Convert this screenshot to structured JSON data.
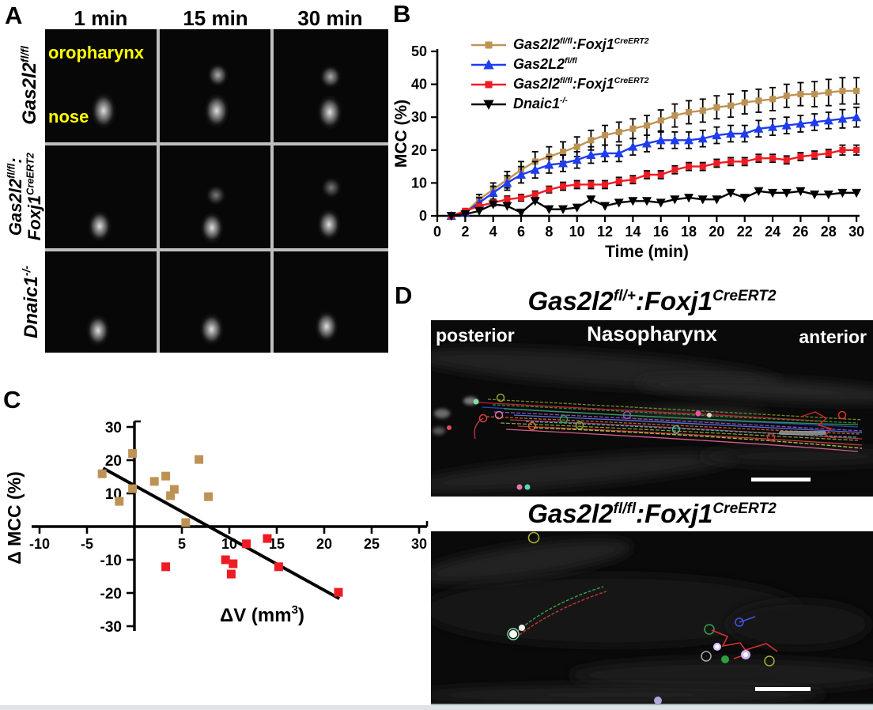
{
  "panelA": {
    "letter": "A",
    "col_headers": [
      "1 min",
      "15 min",
      "30 min"
    ],
    "row_labels": [
      {
        "line1": [
          [
            "Gas2l2",
            ""
          ],
          [
            "fl/fl",
            "sup"
          ]
        ]
      },
      {
        "line1": [
          [
            "Gas2l2",
            ""
          ],
          [
            "fl/fl",
            "sup"
          ],
          [
            ":",
            ""
          ]
        ],
        "line2": [
          [
            "Foxj1",
            ""
          ],
          [
            "CreERT2",
            "sup"
          ]
        ]
      },
      {
        "line1": [
          [
            "Dnaic1",
            ""
          ],
          [
            "-/-",
            "sup"
          ]
        ]
      }
    ],
    "overlay_labels": {
      "top": "oropharynx",
      "bottom": "nose"
    },
    "overlay_color": "#ffff00"
  },
  "panelB": {
    "letter": "B"
  },
  "panelC": {
    "letter": "C"
  },
  "panelD": {
    "letter": "D",
    "title_top": [
      [
        "Gas2l2",
        ""
      ],
      [
        "fl/+",
        "sup"
      ],
      [
        ":Foxj1",
        ""
      ],
      [
        "CreERT2",
        "sup"
      ]
    ],
    "title_bottom": [
      [
        "Gas2l2",
        ""
      ],
      [
        "fl/fl",
        "sup"
      ],
      [
        ":Foxj1",
        ""
      ],
      [
        "CreERT2",
        "sup"
      ]
    ],
    "image_top_labels": {
      "left": "posterior",
      "center": "Nasopharynx",
      "right": "anterior"
    }
  },
  "chart_data": [
    {
      "id": "mcc-time-course",
      "type": "line",
      "xlabel": "Time (min)",
      "ylabel": "MCC (%)",
      "xlim": [
        0,
        30
      ],
      "ylim": [
        0,
        50
      ],
      "xticks": [
        0,
        2,
        4,
        6,
        8,
        10,
        12,
        14,
        16,
        18,
        20,
        22,
        24,
        26,
        28,
        30
      ],
      "yticks": [
        0,
        10,
        20,
        30,
        40,
        50
      ],
      "grid": false,
      "legend_position": "top-left",
      "x": [
        1,
        2,
        3,
        4,
        5,
        6,
        7,
        8,
        9,
        10,
        11,
        12,
        13,
        14,
        15,
        16,
        17,
        18,
        19,
        20,
        21,
        22,
        23,
        24,
        25,
        26,
        27,
        28,
        29,
        30
      ],
      "series": [
        {
          "name_rich": [
            [
              "Gas2l2",
              ""
            ],
            [
              "fl/fl",
              "sup"
            ],
            [
              ":Foxj1",
              ""
            ],
            [
              "CreERT2",
              "sup"
            ]
          ],
          "color": "#bd9355",
          "marker": "square",
          "values": [
            0,
            1,
            5,
            8,
            11,
            14,
            16.5,
            18,
            19.5,
            21,
            23,
            24.5,
            25.5,
            26.5,
            27.5,
            29,
            30.5,
            31.5,
            32,
            33,
            33.5,
            34.5,
            35,
            35.5,
            36.5,
            37,
            37,
            37.5,
            38,
            38
          ],
          "errors": [
            0.3,
            0.8,
            1.5,
            2,
            2.5,
            2.5,
            3,
            3,
            3,
            3,
            3,
            3,
            3,
            3,
            3,
            3.2,
            3.5,
            3.5,
            3.5,
            3.5,
            3.5,
            3.5,
            3.5,
            3.5,
            3.5,
            3.5,
            3.8,
            4,
            4,
            4
          ]
        },
        {
          "name_rich": [
            [
              "Gas2L2",
              ""
            ],
            [
              "fl/fl",
              "sup"
            ]
          ],
          "color": "#1e3cf0",
          "marker": "triangle-up",
          "values": [
            0,
            1,
            4,
            7,
            10,
            12.5,
            14,
            15.5,
            16,
            17,
            18.5,
            19,
            19,
            21,
            22,
            23,
            23,
            23,
            23.5,
            24.5,
            25,
            25,
            26.5,
            27,
            27.5,
            28,
            28.5,
            29,
            29.5,
            30
          ],
          "errors": [
            0.3,
            0.8,
            1.5,
            2,
            2.2,
            2.5,
            2.5,
            2.5,
            2.5,
            2.5,
            2.5,
            2.5,
            2.5,
            2.5,
            2.5,
            2.5,
            2.5,
            2.5,
            2.5,
            2.5,
            2.5,
            2.5,
            2.5,
            2.5,
            2.5,
            2.5,
            2.5,
            2.5,
            2.8,
            3
          ]
        },
        {
          "name_rich": [
            [
              "Gas2l2",
              ""
            ],
            [
              "fl/fl",
              "sup"
            ],
            [
              ":Foxj1",
              ""
            ],
            [
              "CreERT2",
              "sup"
            ]
          ],
          "color": "#ed1c24",
          "marker": "square",
          "values": [
            0,
            1.5,
            3,
            4,
            5,
            5.5,
            6.5,
            8,
            9,
            9.5,
            9.5,
            9.5,
            10.5,
            11,
            12.5,
            12.5,
            14,
            15,
            15,
            16,
            16.5,
            16.5,
            17.5,
            17.5,
            17,
            18,
            18.5,
            19,
            20,
            20
          ],
          "errors": [
            0.2,
            0.5,
            0.8,
            1,
            1,
            1,
            1,
            1,
            1.2,
            1.2,
            1.2,
            1.2,
            1.2,
            1.2,
            1.2,
            1.2,
            1.2,
            1.2,
            1.2,
            1.2,
            1.2,
            1.2,
            1.2,
            1.2,
            1.2,
            1.2,
            1.2,
            1.2,
            1.5,
            1.5
          ]
        },
        {
          "name_rich": [
            [
              "Dnaic1",
              ""
            ],
            [
              "-/-",
              "sup"
            ]
          ],
          "color": "#000000",
          "marker": "triangle-down",
          "values": [
            0,
            0.5,
            1.5,
            3.5,
            3,
            1,
            4.5,
            2,
            2,
            2.5,
            5,
            3,
            4,
            4.5,
            4.5,
            4,
            5,
            5.5,
            5,
            5,
            7,
            5.5,
            7.5,
            7,
            7,
            7.5,
            6.5,
            6.5,
            7,
            7
          ],
          "errors": [
            0,
            0,
            0,
            0,
            0,
            0,
            0,
            0,
            0,
            0,
            0,
            0,
            0,
            0,
            0,
            0,
            0,
            0,
            0,
            0,
            0,
            0,
            0,
            0,
            0,
            0,
            0,
            0,
            0,
            0
          ]
        }
      ]
    },
    {
      "id": "delta-mcc-vs-delta-v",
      "type": "scatter",
      "xlabel_rich": [
        [
          "ΔV (mm",
          ""
        ],
        [
          "3",
          "sup"
        ],
        [
          ")",
          ""
        ]
      ],
      "ylabel": "Δ MCC (%)",
      "xlim": [
        -10,
        30
      ],
      "ylim": [
        -30,
        30
      ],
      "xticks": [
        -10,
        -5,
        5,
        10,
        15,
        20,
        25,
        30
      ],
      "yticks": [
        30,
        20,
        10,
        -10,
        -20,
        -30
      ],
      "grid": false,
      "series": [
        {
          "color": "#bd9355",
          "marker": "square",
          "points": [
            [
              -0.2,
              22
            ],
            [
              6.8,
              20.2
            ],
            [
              -3.4,
              15.9
            ],
            [
              3.3,
              15.2
            ],
            [
              2.1,
              13.6
            ],
            [
              -0.2,
              11.4
            ],
            [
              4.2,
              11.2
            ],
            [
              3.8,
              9.3
            ],
            [
              7.8,
              9
            ],
            [
              -1.6,
              7.6
            ],
            [
              5.4,
              1.2
            ]
          ]
        },
        {
          "color": "#ed1c24",
          "marker": "square",
          "points": [
            [
              14,
              -3.6
            ],
            [
              11.8,
              -5.2
            ],
            [
              9.6,
              -10
            ],
            [
              10.4,
              -11.2
            ],
            [
              3.3,
              -12.1
            ],
            [
              15.2,
              -12.1
            ],
            [
              10.2,
              -14.3
            ],
            [
              21.5,
              -19.8
            ]
          ]
        }
      ],
      "trendline": {
        "from": [
          -3.3,
          17.6
        ],
        "to": [
          21.6,
          -21.7
        ],
        "color": "#000000"
      }
    }
  ]
}
